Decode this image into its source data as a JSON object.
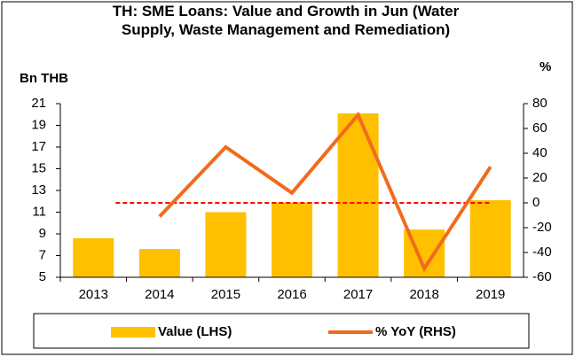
{
  "chart_data": {
    "type": "bar_line",
    "title": "TH: SME Loans: Value and Growth in Jun (Water Supply, Waste Management and Remediation)",
    "y_label": "Bn THB",
    "y2_label": "%",
    "categories": [
      "2013",
      "2014",
      "2015",
      "2016",
      "2017",
      "2018",
      "2019"
    ],
    "series": [
      {
        "name": "Value (LHS)",
        "type": "bar",
        "color": "#ffc000",
        "values": [
          8.6,
          7.6,
          11.0,
          11.9,
          20.1,
          9.4,
          12.1
        ]
      },
      {
        "name": "% YoY (RHS)",
        "type": "line",
        "axis": "y2",
        "color": "#f26b1d",
        "values": [
          null,
          -11,
          45,
          8,
          71,
          -53,
          29
        ]
      }
    ],
    "ylim": [
      5,
      21
    ],
    "yticks": [
      5,
      7,
      9,
      11,
      13,
      15,
      17,
      19,
      21
    ],
    "y2lim": [
      -60,
      80
    ],
    "y2ticks": [
      -60,
      -40,
      -20,
      0,
      20,
      40,
      60,
      80
    ],
    "hline": {
      "value": 0,
      "axis": "y2",
      "color": "#ff0000"
    },
    "legend": "bottom"
  }
}
